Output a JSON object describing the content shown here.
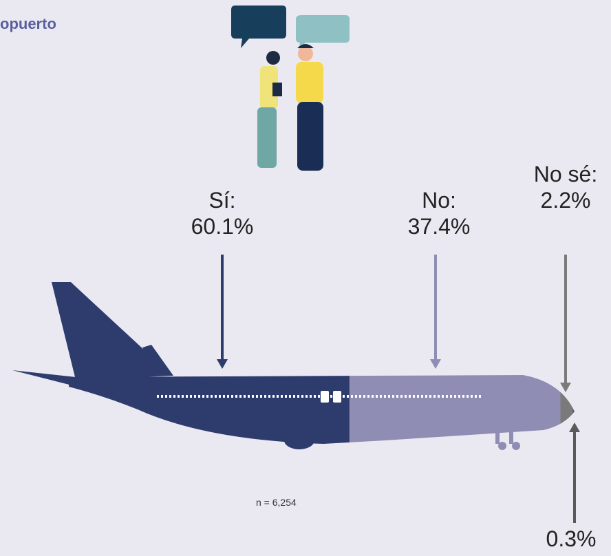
{
  "chart_data": {
    "type": "plane",
    "title": "opuerto",
    "categories": [
      "Sí:",
      "No:",
      "No sé:",
      null
    ],
    "values": [
      60.1,
      37.4,
      2.2,
      0.3
    ],
    "value_labels": [
      "60.1%",
      "37.4%",
      "2.2%",
      "0.3%"
    ],
    "colors": [
      "#2e3c6d",
      "#8f8db3",
      "#7a7a7a",
      "#5a5a5a"
    ],
    "note": "n = 6,254"
  }
}
